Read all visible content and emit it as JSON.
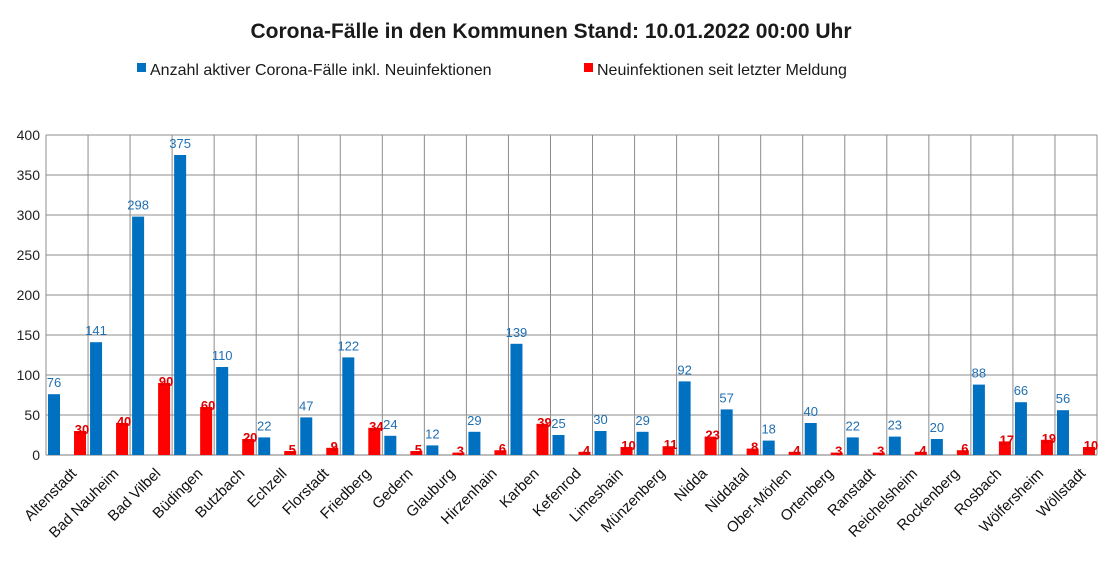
{
  "chart_data": {
    "type": "bar",
    "title": "Corona-Fälle in den Kommunen Stand: 10.01.2022 00:00 Uhr",
    "legend_position": "top",
    "grid": true,
    "ylim": [
      0,
      400
    ],
    "yticks": [
      0,
      50,
      100,
      150,
      200,
      250,
      300,
      350,
      400
    ],
    "categories": [
      "Altenstadt",
      "Bad Nauheim",
      "Bad Vilbel",
      "Büdingen",
      "Butzbach",
      "Echzell",
      "Florstadt",
      "Friedberg",
      "Gedern",
      "Glauburg",
      "Hirzenhain",
      "Karben",
      "Kefenrod",
      "Limeshain",
      "Münzenberg",
      "Nidda",
      "Niddatal",
      "Ober-Mörlen",
      "Ortenberg",
      "Ranstadt",
      "Reichelsheim",
      "Rockenberg",
      "Rosbach",
      "Wölfersheim",
      "Wöllstadt"
    ],
    "series": [
      {
        "name": "Anzahl aktiver Corona-Fälle inkl. Neuinfektionen",
        "color": "#0070c0",
        "label_color": "#1f6fb3",
        "values": [
          76,
          141,
          298,
          375,
          110,
          22,
          47,
          122,
          24,
          12,
          29,
          139,
          25,
          30,
          29,
          92,
          57,
          18,
          40,
          22,
          23,
          20,
          88,
          66,
          56
        ]
      },
      {
        "name": "Neuinfektionen seit letzter Meldung",
        "color": "#ff0000",
        "label_color": "#e00000",
        "values": [
          30,
          40,
          90,
          60,
          20,
          5,
          9,
          34,
          5,
          3,
          6,
          39,
          4,
          10,
          11,
          23,
          8,
          4,
          3,
          3,
          4,
          6,
          17,
          19,
          10
        ]
      }
    ]
  }
}
